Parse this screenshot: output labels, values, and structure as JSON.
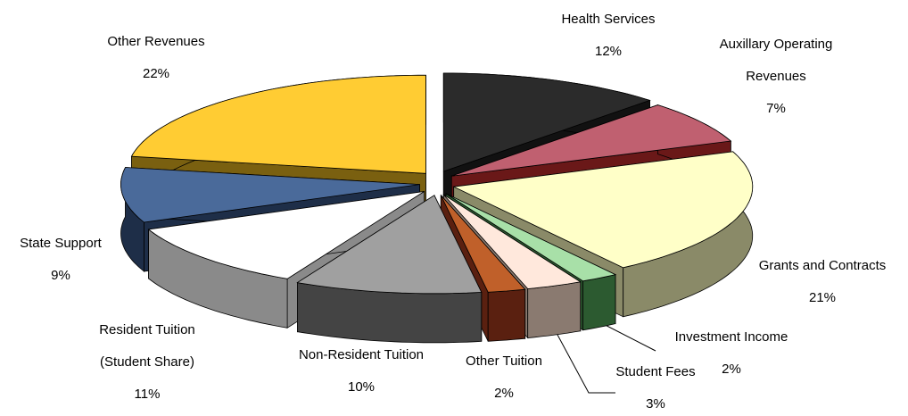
{
  "chart_data": {
    "type": "pie3d",
    "categories": [
      "Health Services",
      "Auxillary Operating Revenues",
      "Grants and Contracts",
      "Investment Income",
      "Student Fees",
      "Other Tuition",
      "Non-Resident Tuition",
      "Resident Tuition (Student Share)",
      "State Support",
      "Other Revenues"
    ],
    "values": [
      12,
      7,
      21,
      2,
      3,
      2,
      10,
      11,
      9,
      22
    ],
    "value_labels": [
      "12%",
      "7%",
      "21%",
      "2%",
      "3%",
      "2%",
      "10%",
      "11%",
      "9%",
      "22%"
    ],
    "colors": [
      "#2b2b2b",
      "#c06070",
      "#ffffc8",
      "#a8e0a8",
      "#ffe8dc",
      "#c0602a",
      "#a0a0a0",
      "#ffffff",
      "#4a6a9a",
      "#ffcc33"
    ],
    "side_colors": [
      "#111111",
      "#6a1818",
      "#8a8a68",
      "#2c5a30",
      "#8a7a70",
      "#5a2010",
      "#444444",
      "#8a8a8a",
      "#1e2e48",
      "#7a6010"
    ]
  }
}
